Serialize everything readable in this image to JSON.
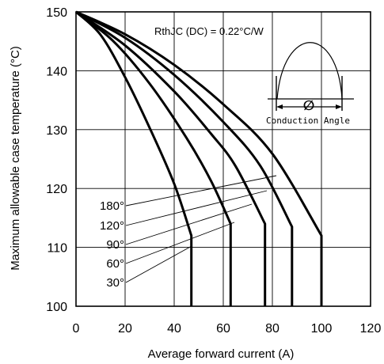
{
  "chart_data": {
    "type": "line",
    "title": "",
    "xlabel": "Average forward current (A)",
    "ylabel": "Maximum allowable case temperature (°C)",
    "xlim": [
      0,
      120
    ],
    "ylim": [
      100,
      150
    ],
    "x_ticks": [
      "0",
      "20",
      "40",
      "60",
      "80",
      "100",
      "120"
    ],
    "y_ticks": [
      "100",
      "110",
      "120",
      "130",
      "140",
      "150"
    ],
    "grid": true,
    "annotation": "RthJC (DC) = 0.22°C/W",
    "inset": {
      "description": "half-sine conduction waveform",
      "symbol": "∅",
      "caption": "Conduction Angle"
    },
    "series": [
      {
        "name": "30°",
        "x": [
          0,
          10,
          20,
          30,
          40,
          47,
          47
        ],
        "y": [
          150,
          146.1,
          138.9,
          130.3,
          120.8,
          112,
          100
        ]
      },
      {
        "name": "60°",
        "x": [
          0,
          15,
          30,
          45,
          55,
          63,
          63
        ],
        "y": [
          150,
          145.1,
          137.8,
          128.6,
          121.3,
          114,
          100
        ]
      },
      {
        "name": "90°",
        "x": [
          0,
          20,
          40,
          55,
          65,
          77,
          77
        ],
        "y": [
          150,
          144.3,
          136.5,
          129.3,
          123.8,
          114,
          100
        ]
      },
      {
        "name": "120°",
        "x": [
          0,
          20,
          40,
          60,
          75,
          88,
          88
        ],
        "y": [
          150,
          145.6,
          139.3,
          131.3,
          123.9,
          113.5,
          100
        ]
      },
      {
        "name": "180°",
        "x": [
          0,
          20,
          40,
          60,
          80,
          100,
          100
        ],
        "y": [
          150,
          146.2,
          141,
          134.3,
          125.9,
          112,
          100
        ]
      }
    ]
  }
}
